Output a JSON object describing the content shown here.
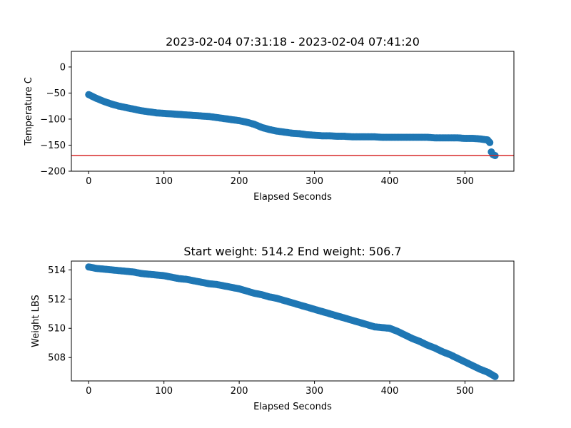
{
  "chart_data": [
    {
      "type": "scatter",
      "title": "2023-02-04 07:31:18 - 2023-02-04 07:41:20",
      "xlabel": "Elapsed Seconds",
      "ylabel": "Temperature C",
      "xlim": [
        -23,
        565
      ],
      "ylim": [
        -200,
        30
      ],
      "xticks": [
        0,
        100,
        200,
        300,
        400,
        500
      ],
      "yticks": [
        -200,
        -150,
        -100,
        -50,
        0
      ],
      "grid": false,
      "legend": "none",
      "marker_color": "#1f77b4",
      "hline": {
        "y": -170,
        "color": "#d62728"
      },
      "points": {
        "x": [
          0,
          10,
          20,
          30,
          40,
          50,
          60,
          70,
          80,
          90,
          100,
          110,
          120,
          130,
          140,
          150,
          160,
          170,
          180,
          190,
          200,
          210,
          220,
          230,
          240,
          250,
          260,
          270,
          280,
          290,
          300,
          310,
          320,
          330,
          340,
          350,
          360,
          370,
          380,
          390,
          400,
          410,
          420,
          430,
          440,
          450,
          460,
          470,
          480,
          490,
          500,
          510,
          520,
          525,
          530,
          533,
          535,
          537,
          540
        ],
        "y": [
          -53,
          -60,
          -66,
          -71,
          -75,
          -78,
          -81,
          -84,
          -86,
          -88,
          -89,
          -90,
          -91,
          -92,
          -93,
          -94,
          -95,
          -97,
          -99,
          -101,
          -103,
          -106,
          -110,
          -116,
          -120,
          -123,
          -125,
          -127,
          -128,
          -130,
          -131,
          -132,
          -132,
          -133,
          -133,
          -134,
          -134,
          -134,
          -134,
          -135,
          -135,
          -135,
          -135,
          -135,
          -135,
          -135,
          -136,
          -136,
          -136,
          -136,
          -137,
          -137,
          -138,
          -139,
          -140,
          -145,
          -163,
          -168,
          -170
        ]
      }
    },
    {
      "type": "scatter",
      "title": "Start weight: 514.2 End weight: 506.7",
      "xlabel": "Elapsed Seconds",
      "ylabel": "Weight LBS",
      "xlim": [
        -23,
        565
      ],
      "ylim": [
        506.4,
        514.6
      ],
      "xticks": [
        0,
        100,
        200,
        300,
        400,
        500
      ],
      "yticks": [
        508,
        510,
        512,
        514
      ],
      "grid": false,
      "legend": "none",
      "marker_color": "#1f77b4",
      "points": {
        "x": [
          0,
          10,
          20,
          30,
          40,
          50,
          60,
          70,
          80,
          90,
          100,
          110,
          120,
          130,
          140,
          150,
          160,
          170,
          180,
          190,
          200,
          210,
          220,
          230,
          240,
          250,
          260,
          270,
          280,
          290,
          300,
          310,
          320,
          330,
          340,
          350,
          360,
          370,
          380,
          390,
          400,
          410,
          420,
          430,
          440,
          450,
          460,
          470,
          480,
          490,
          500,
          510,
          520,
          530,
          540
        ],
        "y": [
          514.2,
          514.1,
          514.05,
          514.0,
          513.95,
          513.9,
          513.85,
          513.75,
          513.7,
          513.65,
          513.6,
          513.5,
          513.4,
          513.35,
          513.25,
          513.15,
          513.05,
          513.0,
          512.9,
          512.8,
          512.7,
          512.55,
          512.4,
          512.3,
          512.15,
          512.05,
          511.9,
          511.75,
          511.6,
          511.45,
          511.3,
          511.15,
          511.0,
          510.85,
          510.7,
          510.55,
          510.4,
          510.25,
          510.1,
          510.05,
          510.0,
          509.8,
          509.55,
          509.3,
          509.1,
          508.85,
          508.65,
          508.4,
          508.2,
          507.95,
          507.7,
          507.45,
          507.2,
          507.0,
          506.7
        ]
      }
    }
  ]
}
